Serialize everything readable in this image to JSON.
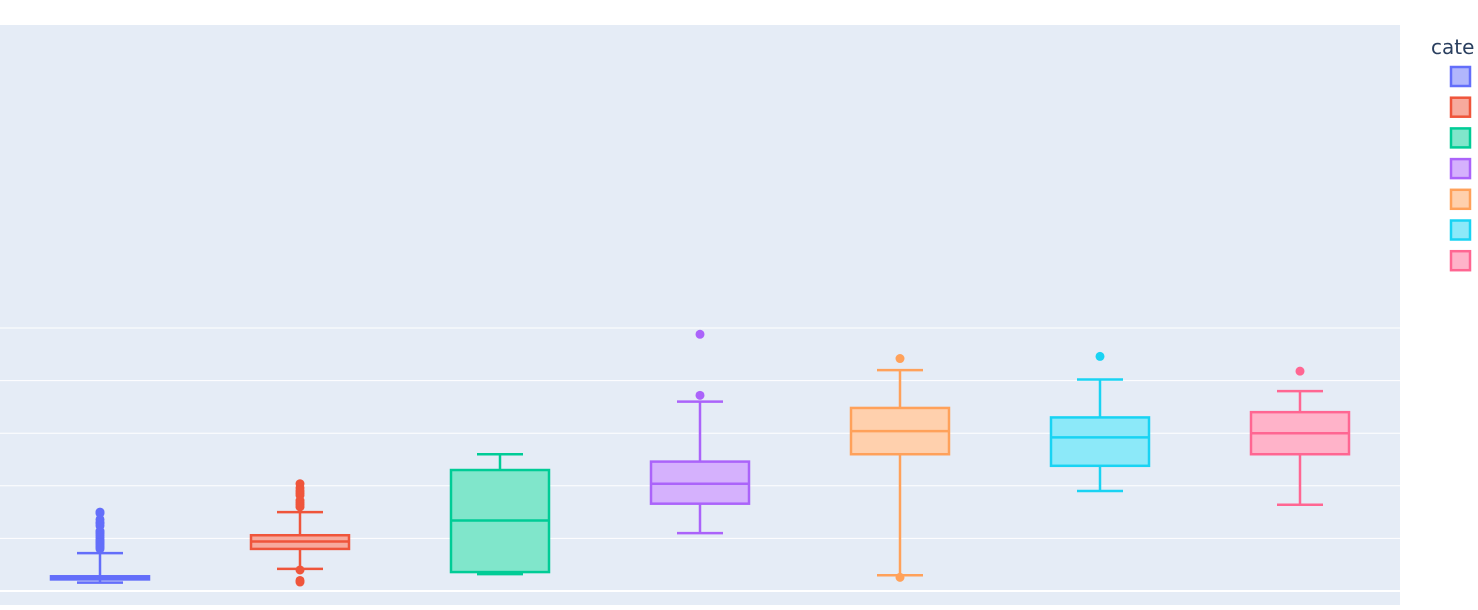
{
  "chart_data": {
    "type": "box",
    "title": "",
    "xlabel": "",
    "ylabel": "",
    "legend": {
      "title": "cate",
      "position": "right"
    },
    "grid": true,
    "series": [
      {
        "color": "#636efa",
        "fill": "#b1b6fc",
        "q1": 51.0,
        "median": 52.5,
        "q3": 54.0,
        "lower_fence": 48.0,
        "upper_fence": 76.0,
        "outliers": [
          115.0,
          114.0,
          108.0,
          105.0,
          104.5,
          102.0,
          97.0,
          96.0,
          95.0,
          93.0,
          91.0,
          89.0,
          87.5,
          86.5,
          85.5,
          84.0,
          82.5,
          81.5,
          80.0
        ]
      },
      {
        "color": "#ef553b",
        "fill": "#f7aa9d",
        "q1": 80.0,
        "median": 87.0,
        "q3": 93.0,
        "lower_fence": 61.0,
        "upper_fence": 115.0,
        "outliers": [
          142.0,
          138.0,
          135.0,
          133.0,
          131.0,
          126.0,
          124.0,
          122.0,
          120.0,
          60.0,
          50.0,
          48.5
        ]
      },
      {
        "color": "#00cc96",
        "fill": "#80e6cb",
        "q1": 58.0,
        "median": 107.0,
        "q3": 155.0,
        "lower_fence": 56.0,
        "upper_fence": 170.0,
        "outliers": []
      },
      {
        "color": "#ab63fa",
        "fill": "#d5b1fd",
        "q1": 123.0,
        "median": 142.0,
        "q3": 163.0,
        "lower_fence": 95.0,
        "upper_fence": 220.0,
        "outliers": [
          284.0,
          226.0
        ]
      },
      {
        "color": "#ffa15a",
        "fill": "#ffd0ad",
        "q1": 170.0,
        "median": 192.0,
        "q3": 214.0,
        "lower_fence": 55.0,
        "upper_fence": 250.0,
        "outliers": [
          261.0,
          53.0
        ]
      },
      {
        "color": "#19d3f3",
        "fill": "#8ce9f9",
        "q1": 159.0,
        "median": 186.0,
        "q3": 205.0,
        "lower_fence": 135.0,
        "upper_fence": 241.0,
        "outliers": [
          263.0
        ]
      },
      {
        "color": "#ff6692",
        "fill": "#ffb3c9",
        "q1": 170.0,
        "median": 190.0,
        "q3": 210.0,
        "lower_fence": 122.0,
        "upper_fence": 230.0,
        "outliers": [
          249.0
        ]
      }
    ]
  }
}
